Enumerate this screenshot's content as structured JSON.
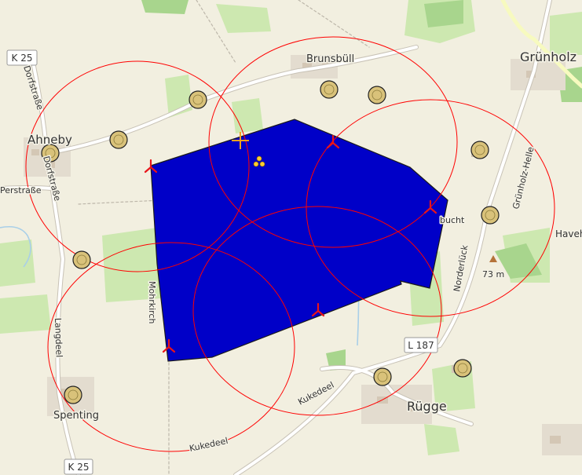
{
  "places": {
    "ahneby": "Ahneby",
    "brunsbull": "Brunsbüll",
    "grunholz": "Grünholz",
    "havet": "Haveh",
    "spenting": "Spenting",
    "rugge": "Rügge",
    "bucht": "bucht"
  },
  "streets": {
    "dorfstrasse_n": "Dorfstraße",
    "dorfstrasse_s": "Dorfstraße",
    "erstrasse": "Perstraße",
    "langdeel": "Langdeel",
    "mohrkirch": "Mohrkirch",
    "kukedeel_a": "Kukedeel",
    "kukedeel_b": "Kukedeel",
    "norderuck": "Norderlück",
    "grunholz_helle": "Grünholz-Helle"
  },
  "road_shields": {
    "k25_top": "K 25",
    "k25_bottom": "K 25",
    "l187": "L 187"
  },
  "elevation": {
    "label": "73 m"
  },
  "colors": {
    "area_fill": "#0000c8",
    "circle_stroke": "#ff0000",
    "turbine_marker": "#e8141a",
    "site_marker_fill": "#d9c27a",
    "cross_marker": "#f0a020",
    "cluster_marker": "#ffcc33"
  },
  "icons": {
    "turbine": "wind-turbine-icon",
    "site": "site-circle-icon",
    "cross": "cross-marker-icon",
    "cluster": "cluster-dots-icon",
    "peak": "peak-triangle-icon"
  }
}
